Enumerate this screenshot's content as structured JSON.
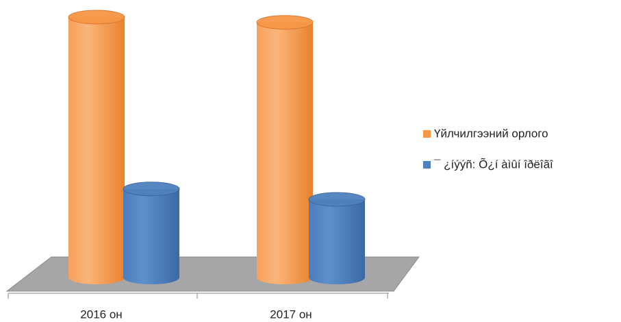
{
  "chart_data": {
    "type": "bar3d",
    "categories": [
      "2016 он",
      "2017 он"
    ],
    "series": [
      {
        "name": "Үйлчилгээний орлого",
        "color": "#f79646",
        "values": [
          100,
          98
        ]
      },
      {
        "name": "¯ ¿íýýñ: Õ¿í àìûí îðëîãî",
        "color": "#4f81bd",
        "values": [
          34,
          30
        ]
      }
    ],
    "legend": "right"
  }
}
